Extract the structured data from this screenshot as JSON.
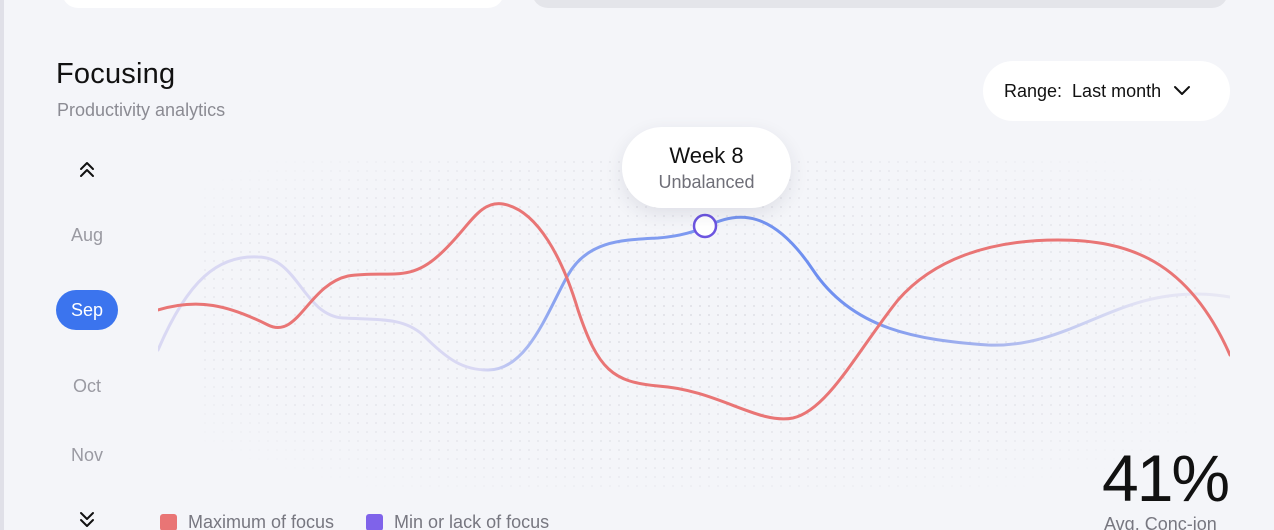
{
  "header": {
    "title": "Focusing",
    "subtitle": "Productivity analytics"
  },
  "range": {
    "label": "Range:",
    "value": "Last month",
    "icon": "chevron-down-icon"
  },
  "months": {
    "items": [
      "Aug",
      "Sep",
      "Oct",
      "Nov"
    ],
    "active": "Sep",
    "active_color": "#3b74ee",
    "up_icon": "double-chevron-up-icon",
    "down_icon": "double-chevron-down-icon"
  },
  "tooltip": {
    "title": "Week 8",
    "subtitle": "Unbalanced"
  },
  "legend": [
    {
      "label": "Maximum of focus",
      "color": "#e97575"
    },
    {
      "label": "Min or lack of focus",
      "color": "#7f63ea"
    }
  ],
  "stat": {
    "value": "41%",
    "label": "Avg. Conc-ion"
  },
  "chart_data": {
    "type": "line",
    "highlight_week": "Week 8",
    "series": [
      {
        "name": "Maximum of focus",
        "color": "#e97575"
      },
      {
        "name": "Min or lack of focus",
        "color": "#7f63ea"
      }
    ]
  }
}
